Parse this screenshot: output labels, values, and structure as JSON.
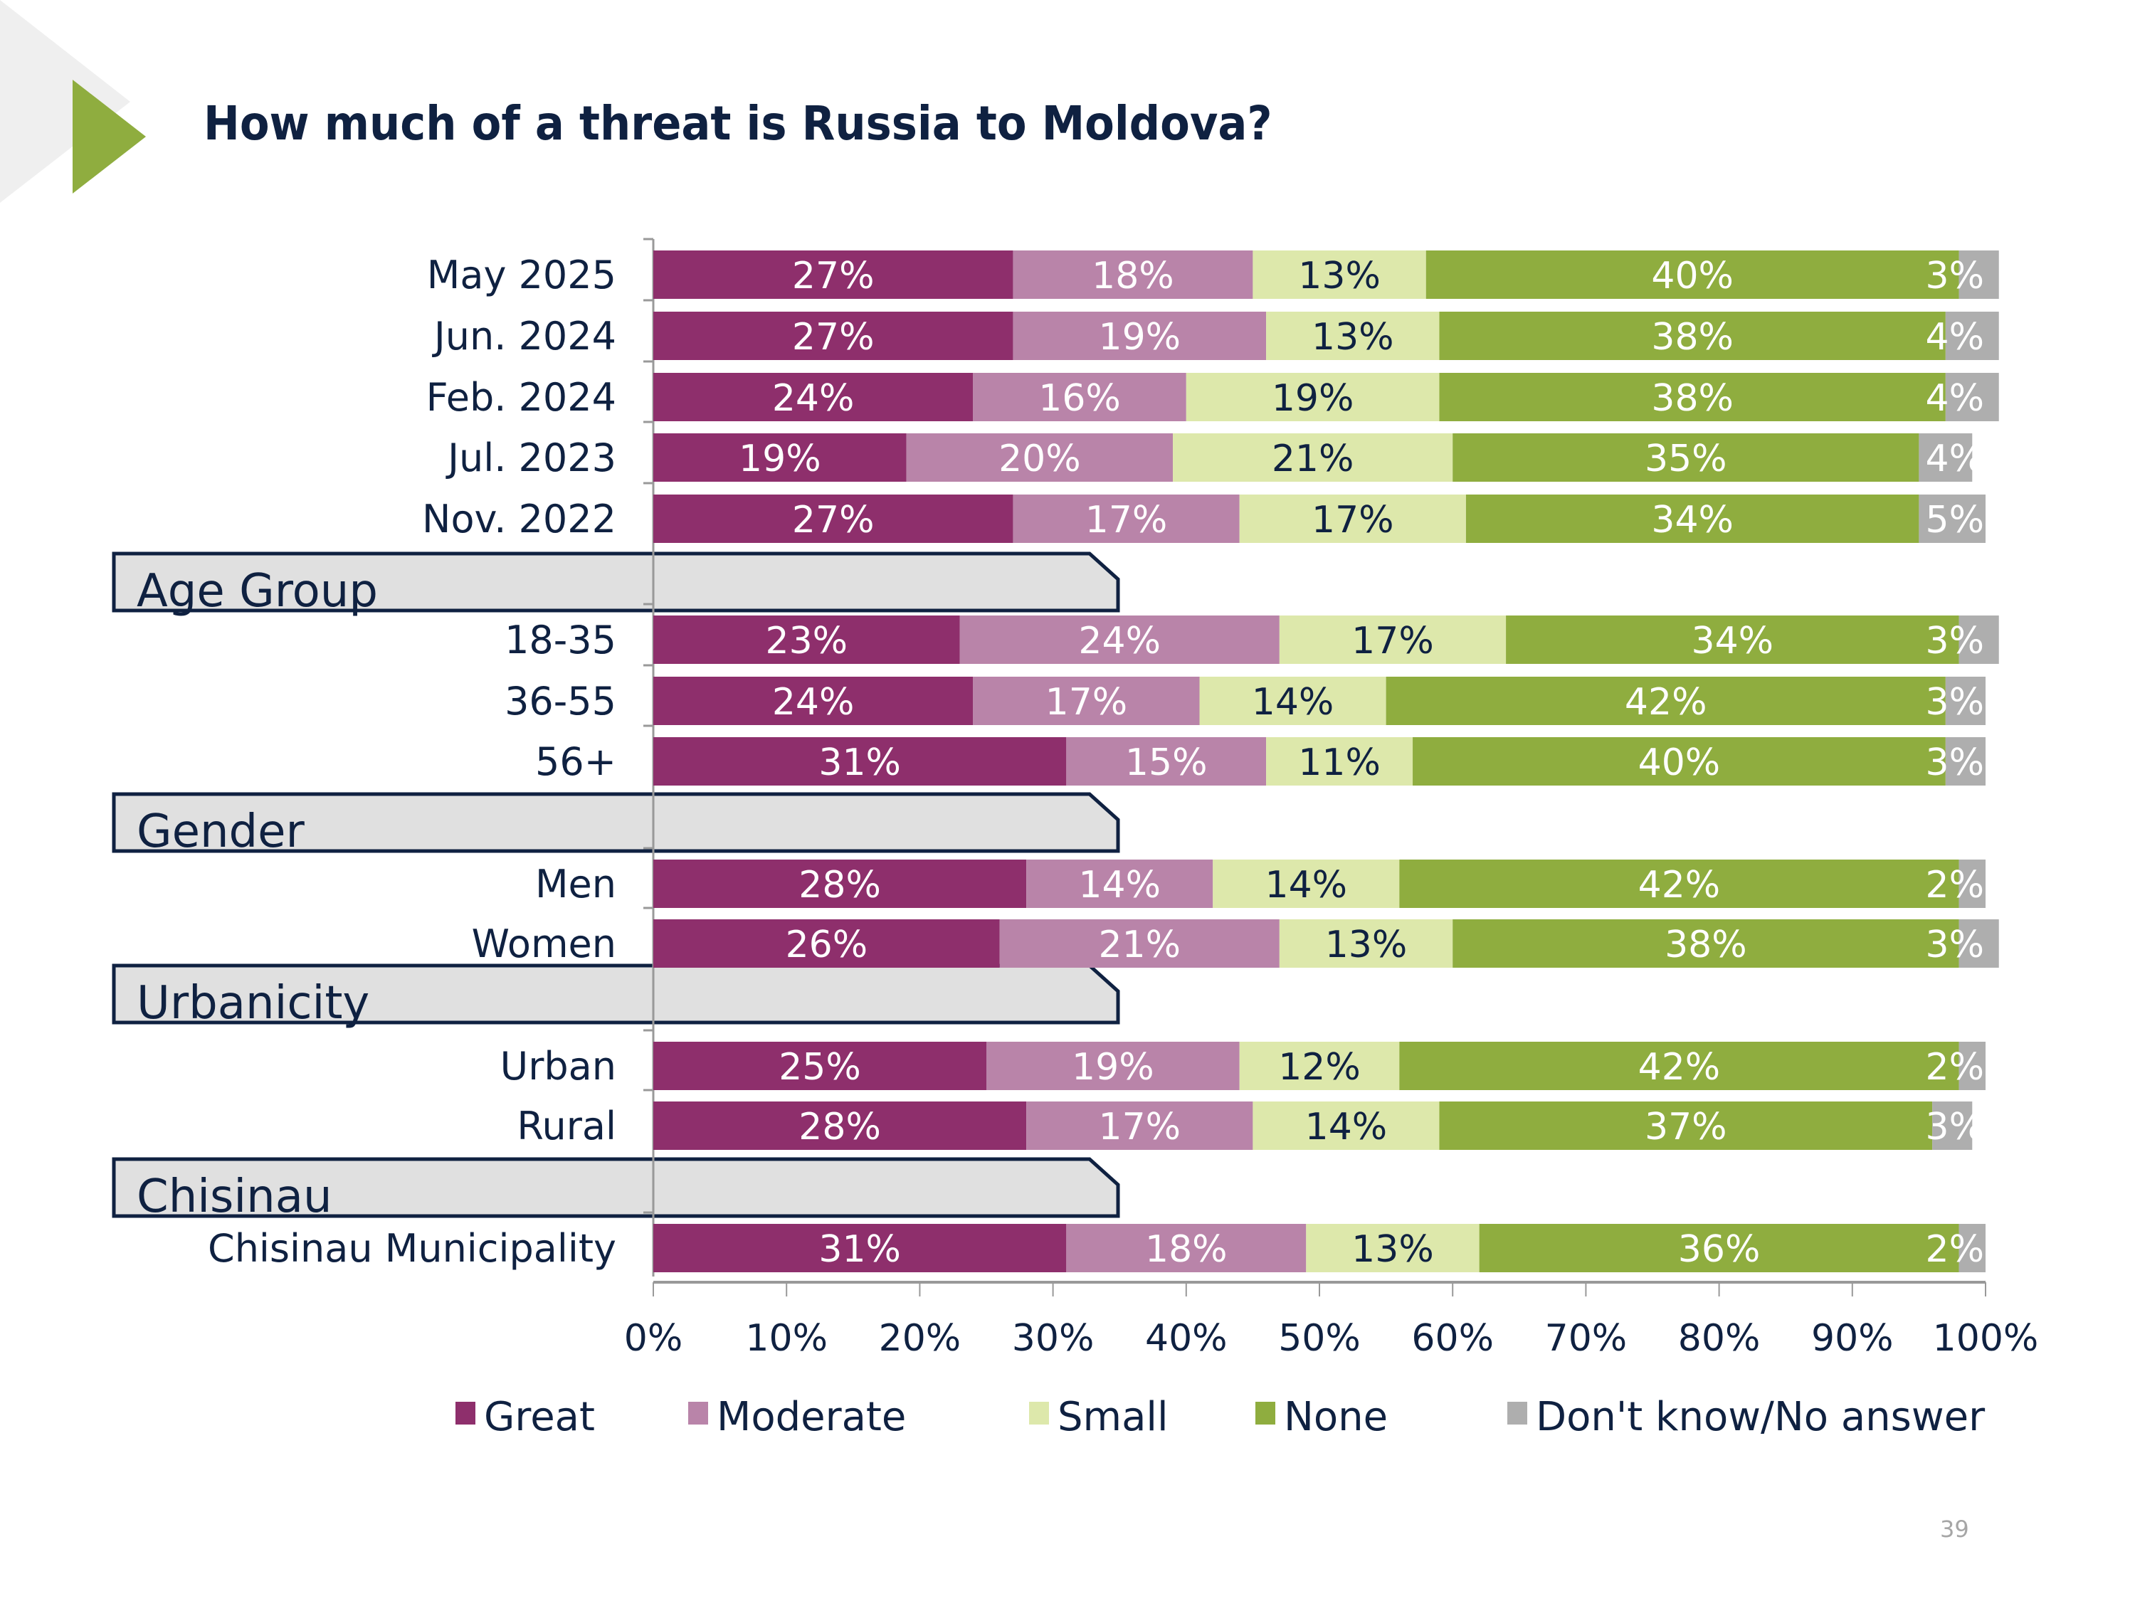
{
  "slide": {
    "title": "How much of a threat is Russia to Moldova?",
    "page_number": "39",
    "accent_color": "#8fad3f",
    "title_color": "#0f2141"
  },
  "chart_data": {
    "type": "bar",
    "orientation": "horizontal",
    "stacked": true,
    "title": "How much of a threat is Russia to Moldova?",
    "xlabel": "",
    "ylabel": "",
    "xlim": [
      0,
      100
    ],
    "x_ticks": [
      "0%",
      "10%",
      "20%",
      "30%",
      "40%",
      "50%",
      "60%",
      "70%",
      "80%",
      "90%",
      "100%"
    ],
    "grid": false,
    "legend_position": "bottom",
    "series": [
      {
        "name": "Great",
        "color": "#8e2f6c",
        "label_color": "#ffffff"
      },
      {
        "name": "Moderate",
        "color": "#b984a9",
        "label_color": "#ffffff"
      },
      {
        "name": "Small",
        "color": "#dde8ab",
        "label_color": "#0f2141"
      },
      {
        "name": "None",
        "color": "#8fad3f",
        "label_color": "#ffffff"
      },
      {
        "name": "Don't know/No answer",
        "color": "#aeaeae",
        "label_color": "#ffffff"
      }
    ],
    "groups": [
      {
        "section": "",
        "rows": [
          {
            "category": "May 2025",
            "values": [
              27,
              18,
              13,
              40,
              3
            ]
          },
          {
            "category": "Jun. 2024",
            "values": [
              27,
              19,
              13,
              38,
              4
            ]
          },
          {
            "category": "Feb. 2024",
            "values": [
              24,
              16,
              19,
              38,
              4
            ]
          },
          {
            "category": "Jul. 2023",
            "values": [
              19,
              20,
              21,
              35,
              4
            ]
          },
          {
            "category": "Nov. 2022",
            "values": [
              27,
              17,
              17,
              34,
              5
            ]
          }
        ]
      },
      {
        "section": "Age Group",
        "rows": [
          {
            "category": "18-35",
            "values": [
              23,
              24,
              17,
              34,
              3
            ]
          },
          {
            "category": "36-55",
            "values": [
              24,
              17,
              14,
              42,
              3
            ]
          },
          {
            "category": "56+",
            "values": [
              31,
              15,
              11,
              40,
              3
            ]
          }
        ]
      },
      {
        "section": "Gender",
        "rows": [
          {
            "category": "Men",
            "values": [
              28,
              14,
              14,
              42,
              2
            ]
          },
          {
            "category": "Women",
            "values": [
              26,
              21,
              13,
              38,
              3
            ]
          }
        ]
      },
      {
        "section": "Urbanicity",
        "rows": [
          {
            "category": "Urban",
            "values": [
              25,
              19,
              12,
              42,
              2
            ]
          },
          {
            "category": "Rural",
            "values": [
              28,
              17,
              14,
              37,
              3
            ]
          }
        ]
      },
      {
        "section": "Chisinau",
        "rows": [
          {
            "category": "Chisinau Municipality",
            "values": [
              31,
              18,
              13,
              36,
              2
            ]
          }
        ]
      }
    ]
  }
}
